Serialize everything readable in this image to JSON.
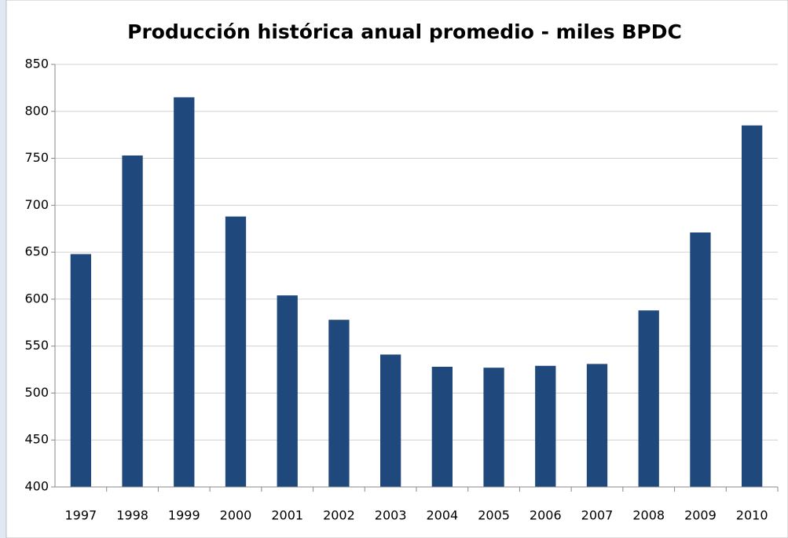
{
  "chart_data": {
    "type": "bar",
    "title": "Producción histórica anual promedio - miles BPDC",
    "categories": [
      "1997",
      "1998",
      "1999",
      "2000",
      "2001",
      "2002",
      "2003",
      "2004",
      "2005",
      "2006",
      "2007",
      "2008",
      "2009",
      "2010"
    ],
    "values": [
      648,
      753,
      815,
      688,
      604,
      578,
      541,
      528,
      527,
      529,
      531,
      588,
      671,
      785
    ],
    "color": "#1f497d",
    "ylim": [
      400,
      850
    ],
    "yticks": [
      400,
      450,
      500,
      550,
      600,
      650,
      700,
      750,
      800,
      850
    ],
    "grid": true
  }
}
